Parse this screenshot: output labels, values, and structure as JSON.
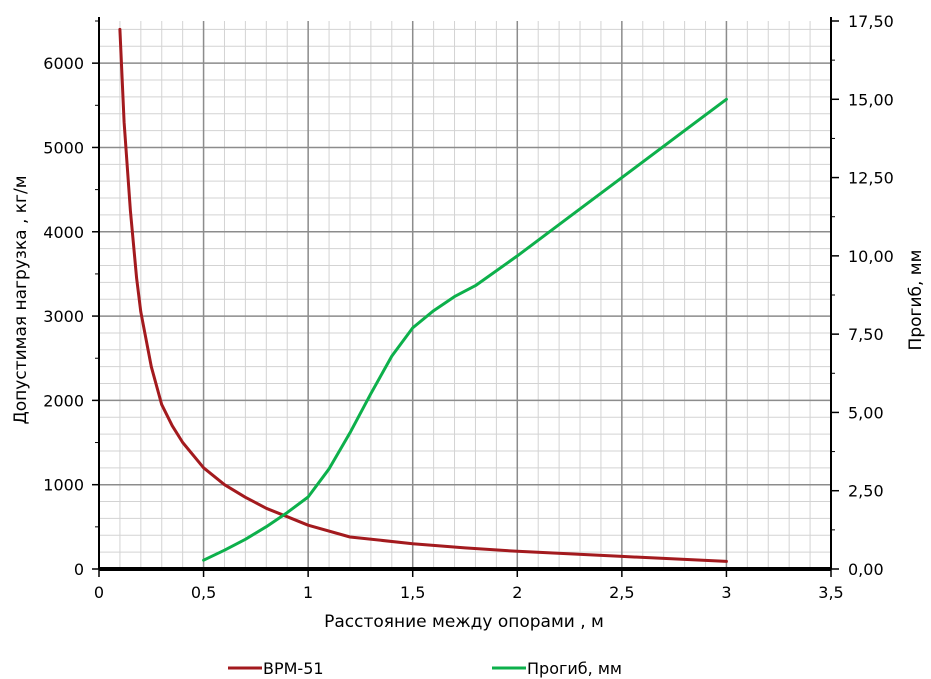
{
  "chart_data": {
    "type": "line",
    "title": "",
    "xlabel": "Расстояние между опорами , м",
    "ylabel_left": "Допустимая нагрузка ,   кг/м",
    "ylabel_right": "Прогиб, мм",
    "xlim": [
      0,
      3.5
    ],
    "ylim_left": [
      0,
      6500
    ],
    "ylim_right": [
      0,
      17.5
    ],
    "x_ticks": [
      "0",
      "0,5",
      "1",
      "1,5",
      "2",
      "2,5",
      "3",
      "3,5"
    ],
    "y_left_ticks": [
      "0",
      "1000",
      "2000",
      "3000",
      "4000",
      "5000",
      "6000"
    ],
    "y_right_ticks": [
      "0,00",
      "2,50",
      "5,00",
      "7,50",
      "10,00",
      "12,50",
      "15,00",
      "17,50"
    ],
    "grid": true,
    "legend_position": "bottom",
    "series": [
      {
        "name": "ВРМ-51",
        "axis": "left",
        "color": "#a31a1e",
        "x": [
          0.1,
          0.12,
          0.15,
          0.18,
          0.2,
          0.25,
          0.3,
          0.35,
          0.4,
          0.5,
          0.6,
          0.7,
          0.8,
          0.9,
          1.0,
          1.2,
          1.5,
          1.75,
          2.0,
          2.5,
          3.0
        ],
        "y": [
          6400,
          5300,
          4250,
          3450,
          3050,
          2400,
          1950,
          1700,
          1500,
          1200,
          1000,
          850,
          720,
          620,
          520,
          380,
          300,
          250,
          210,
          150,
          90
        ]
      },
      {
        "name": "Прогиб, мм",
        "axis": "right",
        "color": "#0db04b",
        "x": [
          0.5,
          0.6,
          0.7,
          0.8,
          0.9,
          1.0,
          1.1,
          1.2,
          1.3,
          1.4,
          1.5,
          1.6,
          1.7,
          1.8,
          2.0,
          2.25,
          2.5,
          2.75,
          3.0
        ],
        "y": [
          0.28,
          0.6,
          0.95,
          1.35,
          1.8,
          2.3,
          3.2,
          4.35,
          5.6,
          6.8,
          7.7,
          8.25,
          8.7,
          9.05,
          10.0,
          11.25,
          12.5,
          13.75,
          15.0
        ]
      }
    ]
  }
}
